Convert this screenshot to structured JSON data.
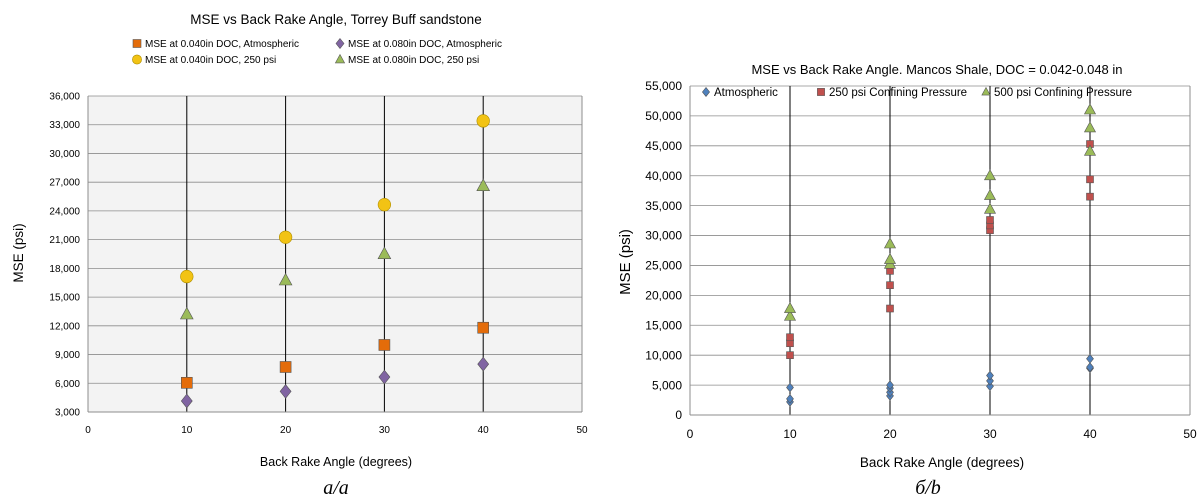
{
  "chart_data": [
    {
      "type": "scatter",
      "title": "MSE vs Back Rake Angle, Torrey Buff sandstone",
      "xlabel": "Back Rake Angle (degrees)",
      "ylabel": "MSE (psi)",
      "xlim": [
        0,
        50
      ],
      "ylim": [
        3000,
        36000
      ],
      "xticks": [
        "0",
        "10",
        "20",
        "30",
        "40",
        "50"
      ],
      "yticks": [
        "3,000",
        "6,000",
        "9,000",
        "12,000",
        "15,000",
        "18,000",
        "21,000",
        "24,000",
        "27,000",
        "30,000",
        "33,000",
        "36,000"
      ],
      "grid": "horizontal lines plus vertical lines at 10, 20, 30, 40",
      "legend_position": "top",
      "caption": "a/a",
      "series": [
        {
          "name": "MSE at 0.040in DOC, Atmospheric",
          "marker": "square",
          "color": "#e46c0a",
          "points": [
            [
              10,
              6050
            ],
            [
              20,
              7700
            ],
            [
              30,
              10000
            ],
            [
              40,
              11800
            ]
          ]
        },
        {
          "name": "MSE at 0.080in DOC, Atmospheric",
          "marker": "diamond",
          "color": "#8064a2",
          "points": [
            [
              10,
              4150
            ],
            [
              20,
              5150
            ],
            [
              30,
              6650
            ],
            [
              40,
              8000
            ]
          ]
        },
        {
          "name": "MSE at 0.040in DOC, 250 psi",
          "marker": "circle",
          "color": "#f2c314",
          "points": [
            [
              10,
              17150
            ],
            [
              20,
              21250
            ],
            [
              30,
              24650
            ],
            [
              40,
              33400
            ]
          ]
        },
        {
          "name": "MSE at 0.080in DOC, 250 psi",
          "marker": "triangle",
          "color": "#9bbb59",
          "points": [
            [
              10,
              13200
            ],
            [
              20,
              16750
            ],
            [
              30,
              19500
            ],
            [
              40,
              26600
            ]
          ]
        }
      ]
    },
    {
      "type": "scatter",
      "title": "MSE vs Back Rake Angle. Mancos Shale, DOC = 0.042-0.048 in",
      "xlabel": "Back Rake Angle (degrees)",
      "ylabel": "MSE (psi)",
      "xlim": [
        0,
        50
      ],
      "ylim": [
        0,
        55000
      ],
      "xticks": [
        "0",
        "10",
        "20",
        "30",
        "40",
        "50"
      ],
      "yticks": [
        "0",
        "5,000",
        "10,000",
        "15,000",
        "20,000",
        "25,000",
        "30,000",
        "35,000",
        "40,000",
        "45,000",
        "50,000",
        "55,000"
      ],
      "grid": "horizontal lines plus vertical lines at 10, 20, 30, 40",
      "legend_position": "top",
      "caption": "б/b",
      "series": [
        {
          "name": "Atmospheric",
          "marker": "diamond",
          "color": "#4f81bd",
          "points": [
            [
              10,
              2200
            ],
            [
              10,
              2700
            ],
            [
              10,
              4600
            ],
            [
              20,
              3200
            ],
            [
              20,
              3800
            ],
            [
              20,
              4500
            ],
            [
              20,
              5000
            ],
            [
              30,
              4800
            ],
            [
              30,
              5700
            ],
            [
              30,
              6600
            ],
            [
              40,
              7800
            ],
            [
              40,
              8000
            ],
            [
              40,
              9400
            ]
          ]
        },
        {
          "name": "250 psi Confining Pressure",
          "marker": "square",
          "color": "#c0504d",
          "points": [
            [
              10,
              10000
            ],
            [
              10,
              12000
            ],
            [
              10,
              13000
            ],
            [
              20,
              17800
            ],
            [
              20,
              21700
            ],
            [
              20,
              24100
            ],
            [
              30,
              30900
            ],
            [
              30,
              31700
            ],
            [
              30,
              32600
            ],
            [
              40,
              36500
            ],
            [
              40,
              39400
            ],
            [
              40,
              45300
            ]
          ]
        },
        {
          "name": "500 psi Confining Pressure",
          "marker": "triangle",
          "color": "#9bbb59",
          "points": [
            [
              10,
              16500
            ],
            [
              10,
              17800
            ],
            [
              20,
              25200
            ],
            [
              20,
              26000
            ],
            [
              20,
              28600
            ],
            [
              30,
              34400
            ],
            [
              30,
              36700
            ],
            [
              30,
              40000
            ],
            [
              40,
              44100
            ],
            [
              40,
              48000
            ],
            [
              40,
              51000
            ]
          ]
        }
      ]
    }
  ]
}
